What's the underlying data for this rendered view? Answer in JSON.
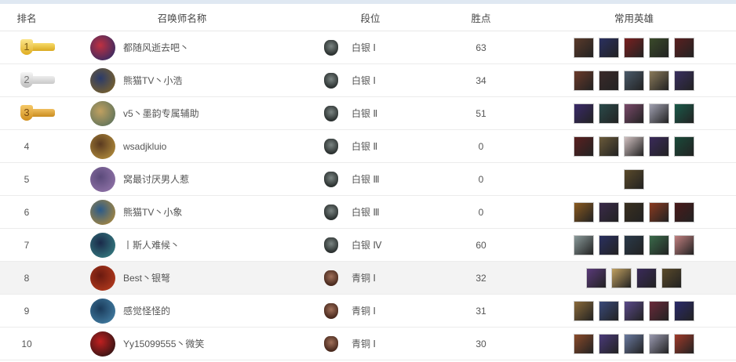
{
  "headers": {
    "rank": "排名",
    "name": "召唤师名称",
    "tier": "段位",
    "points": "胜点",
    "heroes": "常用英雄"
  },
  "rows": [
    {
      "rank": "1",
      "medal": "gold",
      "name": "都随风逝去吧丶",
      "tier": "白银 Ⅰ",
      "tier_icon": "silver",
      "points": "63",
      "avatar": [
        "#1a2a6a",
        "#c03040"
      ],
      "heroes": [
        "#5a3a2a",
        "#2a3060",
        "#7a2020",
        "#3a4a2a",
        "#5a2020"
      ]
    },
    {
      "rank": "2",
      "medal": "silver",
      "name": "熊猫TV丶小浩",
      "tier": "白银 Ⅰ",
      "tier_icon": "silver",
      "points": "34",
      "avatar": [
        "#8a6a20",
        "#2a3a6a"
      ],
      "heroes": [
        "#6a3a2a",
        "#3a2a2a",
        "#4a5a6a",
        "#8a7a5a",
        "#3a3060"
      ]
    },
    {
      "rank": "3",
      "medal": "bronze",
      "name": "v5丶墨韵专属辅助",
      "tier": "白银 Ⅱ",
      "tier_icon": "silver",
      "points": "51",
      "avatar": [
        "#4a6a5a",
        "#c0a060"
      ],
      "heroes": [
        "#3a2a6a",
        "#2a4a4a",
        "#7a4a6a",
        "#a0a0b0",
        "#1a5a4a"
      ]
    },
    {
      "rank": "4",
      "medal": "",
      "name": "wsadjkluio",
      "tier": "白银 Ⅱ",
      "tier_icon": "silver",
      "points": "0",
      "avatar": [
        "#c09a40",
        "#5a3a20"
      ],
      "heroes": [
        "#5a2020",
        "#6a5a3a",
        "#d0c0c0",
        "#3a2a5a",
        "#1a4a3a"
      ]
    },
    {
      "rank": "5",
      "medal": "",
      "name": "窝最讨厌男人惹",
      "tier": "白银 Ⅲ",
      "tier_icon": "silver",
      "points": "0",
      "avatar": [
        "#9a7ab0",
        "#5a4a7a"
      ],
      "heroes": [
        "#5a4a2a"
      ]
    },
    {
      "rank": "6",
      "medal": "",
      "name": "熊猫TV丶小象",
      "tier": "白银 Ⅲ",
      "tier_icon": "silver",
      "points": "0",
      "avatar": [
        "#c09030",
        "#2a5a8a"
      ],
      "heroes": [
        "#8a5a20",
        "#3a2a4a",
        "#3a3020",
        "#8a3a20",
        "#4a1a1a"
      ]
    },
    {
      "rank": "7",
      "medal": "",
      "name": "丨斯人难候丶",
      "tier": "白银 Ⅳ",
      "tier_icon": "silver",
      "points": "60",
      "avatar": [
        "#3a8a8a",
        "#1a2a4a"
      ],
      "heroes": [
        "#8a9a9a",
        "#2a3060",
        "#2a3a4a",
        "#3a6a4a",
        "#c08080"
      ]
    },
    {
      "rank": "8",
      "medal": "",
      "name": "Best丶银弩",
      "tier": "青铜 Ⅰ",
      "tier_icon": "bronze",
      "points": "32",
      "avatar": [
        "#c04020",
        "#6a1a10"
      ],
      "heroes": [
        "#5a3a7a",
        "#c0a060",
        "#3a2a5a",
        "#5a4a2a"
      ],
      "highlight": true
    },
    {
      "rank": "9",
      "medal": "",
      "name": "感觉怪怪的",
      "tier": "青铜 Ⅰ",
      "tier_icon": "bronze",
      "points": "31",
      "avatar": [
        "#4a8ab0",
        "#1a3a5a"
      ],
      "heroes": [
        "#8a6a3a",
        "#3a4a7a",
        "#5a4a8a",
        "#6a2a3a",
        "#2a2a6a"
      ]
    },
    {
      "rank": "10",
      "medal": "",
      "name": "Yy15099555丶微笑",
      "tier": "青铜 Ⅰ",
      "tier_icon": "bronze",
      "points": "30",
      "avatar": [
        "#111111",
        "#c02020"
      ],
      "heroes": [
        "#8a4a2a",
        "#4a3a7a",
        "#6a7aa0",
        "#9a9ab0",
        "#a03a2a"
      ]
    }
  ]
}
